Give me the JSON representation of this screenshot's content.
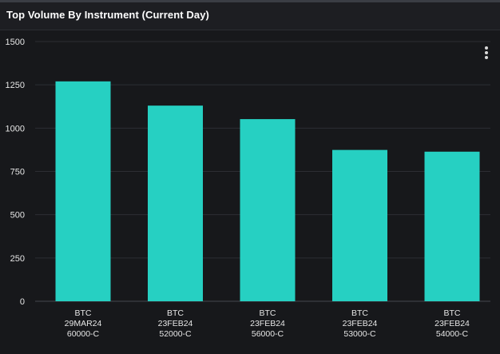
{
  "panel": {
    "title": "Top Volume By Instrument (Current Day)",
    "menu_icon": "more-vertical-icon"
  },
  "chart_data": {
    "type": "bar",
    "title": "Top Volume By Instrument (Current Day)",
    "xlabel": "",
    "ylabel": "",
    "ylim": [
      0,
      1500
    ],
    "yticks": [
      0,
      250,
      500,
      750,
      1000,
      1250,
      1500
    ],
    "grid": true,
    "bar_color": "#26d0c2",
    "categories": [
      [
        "BTC",
        "29MAR24",
        "60000-C"
      ],
      [
        "BTC",
        "23FEB24",
        "52000-C"
      ],
      [
        "BTC",
        "23FEB24",
        "56000-C"
      ],
      [
        "BTC",
        "23FEB24",
        "53000-C"
      ],
      [
        "BTC",
        "23FEB24",
        "54000-C"
      ]
    ],
    "values": [
      1270,
      1130,
      1052,
      874,
      864
    ]
  }
}
